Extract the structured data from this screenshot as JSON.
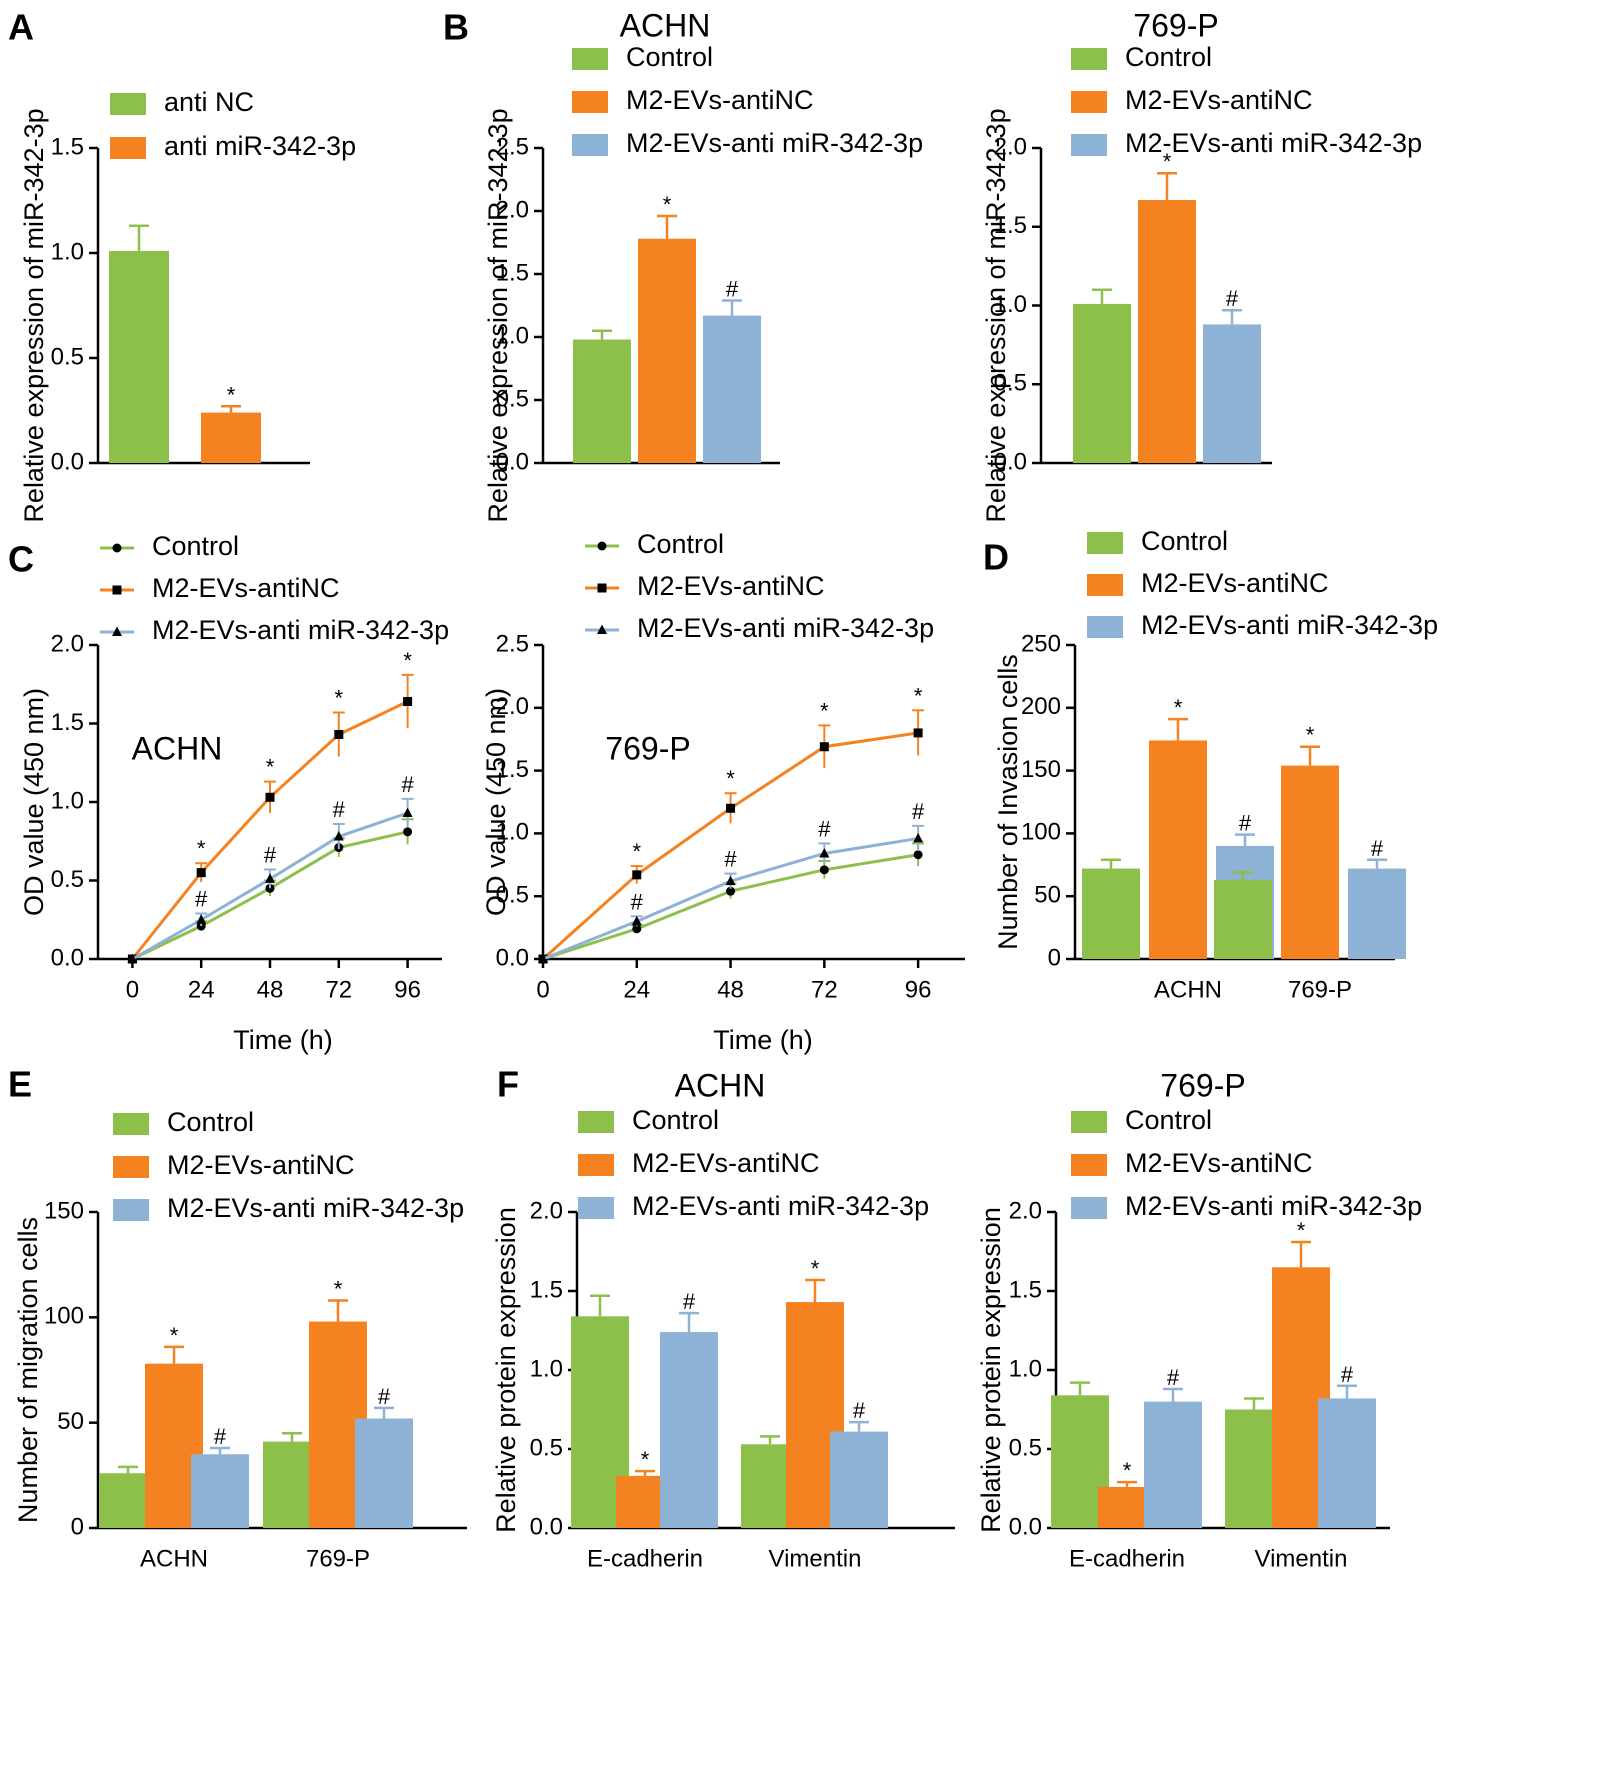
{
  "colors": {
    "green": "#8cc04b",
    "orange": "#f58220",
    "blue": "#8eb1d6"
  },
  "chart_data": [
    {
      "id": "A",
      "panel_label": "A",
      "type": "bar",
      "title": "",
      "ylabel": "Relative expression of miR-342-3p",
      "xlabel": "",
      "ylim": [
        0,
        1.5
      ],
      "yticks": [
        "0.0",
        "0.5",
        "1.0",
        "1.5"
      ],
      "legend": [
        "anti NC",
        "anti miR-342-3p"
      ],
      "categories": [
        ""
      ],
      "series": [
        {
          "name": "anti NC",
          "color": "green",
          "values": [
            1.01
          ],
          "errors": [
            0.12
          ],
          "annotations": [
            ""
          ]
        },
        {
          "name": "anti miR-342-3p",
          "color": "orange",
          "values": [
            0.24
          ],
          "errors": [
            0.03
          ],
          "annotations": [
            "*"
          ]
        }
      ]
    },
    {
      "id": "B1",
      "panel_label": "B",
      "type": "bar",
      "title": "ACHN",
      "ylabel": "Relative expression of miR-342-3p",
      "xlabel": "",
      "ylim": [
        0,
        2.5
      ],
      "yticks": [
        "0.0",
        "0.5",
        "1.0",
        "1.5",
        "2.0",
        "2.5"
      ],
      "legend": [
        "Control",
        "M2-EVs-antiNC",
        "M2-EVs-anti miR-342-3p"
      ],
      "categories": [
        ""
      ],
      "series": [
        {
          "name": "Control",
          "color": "green",
          "values": [
            0.98
          ],
          "errors": [
            0.07
          ],
          "annotations": [
            ""
          ]
        },
        {
          "name": "M2-EVs-antiNC",
          "color": "orange",
          "values": [
            1.78
          ],
          "errors": [
            0.18
          ],
          "annotations": [
            "*"
          ]
        },
        {
          "name": "M2-EVs-anti miR-342-3p",
          "color": "blue",
          "values": [
            1.17
          ],
          "errors": [
            0.12
          ],
          "annotations": [
            "#"
          ]
        }
      ]
    },
    {
      "id": "B2",
      "panel_label": "",
      "type": "bar",
      "title": "769-P",
      "ylabel": "Relative expression of miR-342-3p",
      "xlabel": "",
      "ylim": [
        0,
        2.0
      ],
      "yticks": [
        "0.0",
        "0.5",
        "1.0",
        "1.5",
        "2.0"
      ],
      "legend": [
        "Control",
        "M2-EVs-antiNC",
        "M2-EVs-anti miR-342-3p"
      ],
      "categories": [
        ""
      ],
      "series": [
        {
          "name": "Control",
          "color": "green",
          "values": [
            1.01
          ],
          "errors": [
            0.09
          ],
          "annotations": [
            ""
          ]
        },
        {
          "name": "M2-EVs-antiNC",
          "color": "orange",
          "values": [
            1.67
          ],
          "errors": [
            0.17
          ],
          "annotations": [
            "*"
          ]
        },
        {
          "name": "M2-EVs-anti miR-342-3p",
          "color": "blue",
          "values": [
            0.88
          ],
          "errors": [
            0.09
          ],
          "annotations": [
            "#"
          ]
        }
      ]
    },
    {
      "id": "C1",
      "panel_label": "C",
      "type": "line",
      "title": "",
      "inner_label": "ACHN",
      "ylabel": "OD value (450 nm)",
      "xlabel": "Time (h)",
      "ylim": [
        0,
        2.0
      ],
      "yticks": [
        "0.0",
        "0.5",
        "1.0",
        "1.5",
        "2.0"
      ],
      "xlim": [
        -12,
        108
      ],
      "x": [
        0,
        24,
        48,
        72,
        96
      ],
      "xticks": [
        "0",
        "24",
        "48",
        "72",
        "96"
      ],
      "legend": [
        "Control",
        "M2-EVs-antiNC",
        "M2-EVs-anti miR-342-3p"
      ],
      "series": [
        {
          "name": "Control",
          "color": "green",
          "marker": "circle",
          "values": [
            0,
            0.21,
            0.45,
            0.71,
            0.81
          ],
          "errors": [
            0,
            0.03,
            0.05,
            0.06,
            0.08
          ],
          "annotations": [
            "",
            "",
            "",
            "",
            ""
          ]
        },
        {
          "name": "M2-EVs-antiNC",
          "color": "orange",
          "marker": "square",
          "values": [
            0,
            0.55,
            1.03,
            1.43,
            1.64
          ],
          "errors": [
            0,
            0.06,
            0.1,
            0.14,
            0.17
          ],
          "annotations": [
            "",
            "*",
            "*",
            "*",
            "*"
          ]
        },
        {
          "name": "M2-EVs-anti miR-342-3p",
          "color": "blue",
          "marker": "triangle",
          "values": [
            0,
            0.25,
            0.51,
            0.78,
            0.93
          ],
          "errors": [
            0,
            0.04,
            0.06,
            0.08,
            0.09
          ],
          "annotations": [
            "",
            "#",
            "#",
            "#",
            "#"
          ]
        }
      ]
    },
    {
      "id": "C2",
      "panel_label": "",
      "type": "line",
      "title": "",
      "inner_label": "769-P",
      "ylabel": "OD value (450 nm)",
      "xlabel": "Time (h)",
      "ylim": [
        0,
        2.5
      ],
      "yticks": [
        "0.0",
        "0.5",
        "1.0",
        "1.5",
        "2.0",
        "2.5"
      ],
      "xlim": [
        0,
        108
      ],
      "x": [
        0,
        24,
        48,
        72,
        96
      ],
      "xticks": [
        "0",
        "24",
        "48",
        "72",
        "96"
      ],
      "legend": [
        "Control",
        "M2-EVs-antiNC",
        "M2-EVs-anti miR-342-3p"
      ],
      "series": [
        {
          "name": "Control",
          "color": "green",
          "marker": "circle",
          "values": [
            0,
            0.24,
            0.54,
            0.71,
            0.83
          ],
          "errors": [
            0,
            0.03,
            0.06,
            0.07,
            0.09
          ],
          "annotations": [
            "",
            "",
            "",
            "",
            ""
          ]
        },
        {
          "name": "M2-EVs-antiNC",
          "color": "orange",
          "marker": "square",
          "values": [
            0,
            0.67,
            1.2,
            1.69,
            1.8
          ],
          "errors": [
            0,
            0.07,
            0.12,
            0.17,
            0.18
          ],
          "annotations": [
            "",
            "*",
            "*",
            "*",
            "*"
          ]
        },
        {
          "name": "M2-EVs-anti miR-342-3p",
          "color": "blue",
          "marker": "triangle",
          "values": [
            0,
            0.3,
            0.62,
            0.84,
            0.96
          ],
          "errors": [
            0,
            0.04,
            0.06,
            0.08,
            0.1
          ],
          "annotations": [
            "",
            "#",
            "#",
            "#",
            "#"
          ]
        }
      ]
    },
    {
      "id": "D",
      "panel_label": "D",
      "type": "bar",
      "title": "",
      "ylabel": "Number of Invasion cells",
      "xlabel": "",
      "ylim": [
        0,
        250
      ],
      "yticks": [
        "0",
        "50",
        "100",
        "150",
        "200",
        "250"
      ],
      "legend": [
        "Control",
        "M2-EVs-antiNC",
        "M2-EVs-anti miR-342-3p"
      ],
      "categories": [
        "ACHN",
        "769-P"
      ],
      "series": [
        {
          "name": "Control",
          "color": "green",
          "values": [
            72,
            63
          ],
          "errors": [
            7,
            6
          ],
          "annotations": [
            "",
            ""
          ]
        },
        {
          "name": "M2-EVs-antiNC",
          "color": "orange",
          "values": [
            174,
            154
          ],
          "errors": [
            17,
            15
          ],
          "annotations": [
            "*",
            "*"
          ]
        },
        {
          "name": "M2-EVs-anti miR-342-3p",
          "color": "blue",
          "values": [
            90,
            72
          ],
          "errors": [
            9,
            7
          ],
          "annotations": [
            "#",
            "#"
          ]
        }
      ]
    },
    {
      "id": "E",
      "panel_label": "E",
      "type": "bar",
      "title": "",
      "ylabel": "Number of migration cells",
      "xlabel": "",
      "ylim": [
        0,
        150
      ],
      "yticks": [
        "0",
        "50",
        "100",
        "150"
      ],
      "legend": [
        "Control",
        "M2-EVs-antiNC",
        "M2-EVs-anti miR-342-3p"
      ],
      "categories": [
        "ACHN",
        "769-P"
      ],
      "series": [
        {
          "name": "Control",
          "color": "green",
          "values": [
            26,
            41
          ],
          "errors": [
            3,
            4
          ],
          "annotations": [
            "",
            ""
          ]
        },
        {
          "name": "M2-EVs-antiNC",
          "color": "orange",
          "values": [
            78,
            98
          ],
          "errors": [
            8,
            10
          ],
          "annotations": [
            "*",
            "*"
          ]
        },
        {
          "name": "M2-EVs-anti miR-342-3p",
          "color": "blue",
          "values": [
            35,
            52
          ],
          "errors": [
            3,
            5
          ],
          "annotations": [
            "#",
            "#"
          ]
        }
      ]
    },
    {
      "id": "F1",
      "panel_label": "F",
      "type": "bar",
      "title": "ACHN",
      "ylabel": "Relative protein expression",
      "xlabel": "",
      "ylim": [
        0,
        2.0
      ],
      "yticks": [
        "0.0",
        "0.5",
        "1.0",
        "1.5",
        "2.0"
      ],
      "legend": [
        "Control",
        "M2-EVs-antiNC",
        "M2-EVs-anti miR-342-3p"
      ],
      "categories": [
        "E-cadherin",
        "Vimentin"
      ],
      "series": [
        {
          "name": "Control",
          "color": "green",
          "values": [
            1.34,
            0.53
          ],
          "errors": [
            0.13,
            0.05
          ],
          "annotations": [
            "",
            ""
          ]
        },
        {
          "name": "M2-EVs-antiNC",
          "color": "orange",
          "values": [
            0.33,
            1.43
          ],
          "errors": [
            0.03,
            0.14
          ],
          "annotations": [
            "*",
            "*"
          ]
        },
        {
          "name": "M2-EVs-anti miR-342-3p",
          "color": "blue",
          "values": [
            1.24,
            0.61
          ],
          "errors": [
            0.12,
            0.06
          ],
          "annotations": [
            "#",
            "#"
          ]
        }
      ]
    },
    {
      "id": "F2",
      "panel_label": "",
      "type": "bar",
      "title": "769-P",
      "ylabel": "Relative protein expression",
      "xlabel": "",
      "ylim": [
        0,
        2.0
      ],
      "yticks": [
        "0.0",
        "0.5",
        "1.0",
        "1.5",
        "2.0"
      ],
      "legend": [
        "Control",
        "M2-EVs-antiNC",
        "M2-EVs-anti miR-342-3p"
      ],
      "categories": [
        "E-cadherin",
        "Vimentin"
      ],
      "series": [
        {
          "name": "Control",
          "color": "green",
          "values": [
            0.84,
            0.75
          ],
          "errors": [
            0.08,
            0.07
          ],
          "annotations": [
            "",
            ""
          ]
        },
        {
          "name": "M2-EVs-antiNC",
          "color": "orange",
          "values": [
            0.26,
            1.65
          ],
          "errors": [
            0.03,
            0.16
          ],
          "annotations": [
            "*",
            "*"
          ]
        },
        {
          "name": "M2-EVs-anti miR-342-3p",
          "color": "blue",
          "values": [
            0.8,
            0.82
          ],
          "errors": [
            0.08,
            0.08
          ],
          "annotations": [
            "#",
            "#"
          ]
        }
      ]
    }
  ]
}
